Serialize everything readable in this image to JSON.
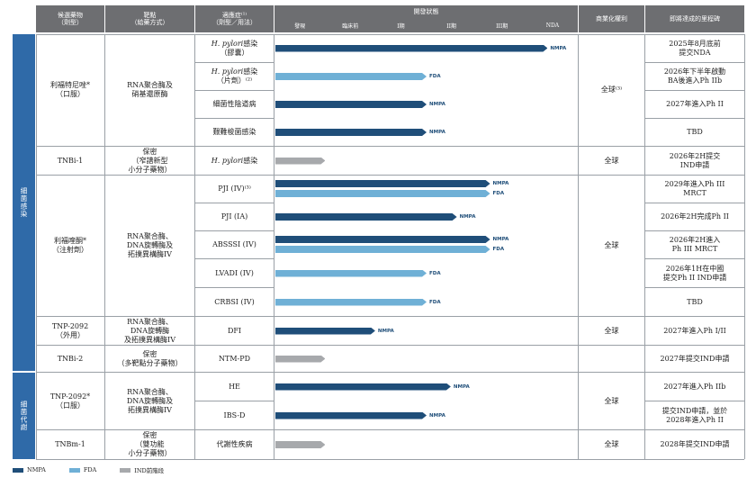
{
  "headers": {
    "candidate": "候選藥物\n（劑型）",
    "target": "靶點\n（給藥方式）",
    "indication": "適應症⁽¹⁾\n（劑型／用法）",
    "status": "開發狀態",
    "rights": "商業化權利",
    "milestone": "即將達成的里程碑",
    "phases": [
      "發現",
      "臨床前",
      "I期",
      "II期",
      "III期",
      "NDA"
    ]
  },
  "categories": {
    "infection": "細菌感染",
    "metabolic": "細菌代謝"
  },
  "candidates": [
    {
      "name": "利福特尼唑*\n（口服）",
      "target": "RNA聚合酶及\n硝基還原酶",
      "rights": "全球⁽³⁾"
    },
    {
      "name": "TNBi-1",
      "target": "保密\n（窄譜新型\n小分子藥物）",
      "rights": "全球"
    },
    {
      "name": "利福喹酮*\n（注射劑）",
      "target": "RNA聚合酶、\nDNA旋轉酶及\n拓撲異構酶IV",
      "rights": "全球"
    },
    {
      "name": "TNP-2092\n（外用）",
      "target": "RNA聚合酶、\nDNA旋轉酶\n及拓撲異構酶IV",
      "rights": "全球"
    },
    {
      "name": "TNBi-2",
      "target": "保密\n（多靶點分子藥物）",
      "rights": ""
    },
    {
      "name": "TNP-2092*\n（口服）",
      "target": "RNA聚合酶、\nDNA旋轉酶及\n拓撲異構酶IV",
      "rights": "全球"
    },
    {
      "name": "TNBm-1",
      "target": "保密\n（雙功能\n小分子藥物）",
      "rights": "全球"
    }
  ],
  "rows": [
    {
      "ind_a": "H. pylori",
      "ind_b": "感染\n（膠囊）",
      "bars": [
        {
          "type": "n",
          "end": 0.9,
          "label": "NMPA"
        }
      ],
      "milestone": "2025年8月底前\n提交NDA"
    },
    {
      "ind_a": "H. pylori",
      "ind_b": "感染\n（片劑）⁽²⁾",
      "bars": [
        {
          "type": "f",
          "end": 0.5,
          "label": "FDA"
        }
      ],
      "milestone": "2026年下半年啟動\nBA後進入Ph IIb"
    },
    {
      "ind_a": "",
      "ind_b": "細菌性陰道病",
      "bars": [
        {
          "type": "n",
          "end": 0.5,
          "label": "NMPA"
        }
      ],
      "milestone": "2027年進入Ph II"
    },
    {
      "ind_a": "",
      "ind_b": "艱難梭菌感染",
      "bars": [
        {
          "type": "n",
          "end": 0.5,
          "label": "NMPA"
        }
      ],
      "milestone": "TBD"
    },
    {
      "ind_a": "H. pylori",
      "ind_b": "感染",
      "bars": [
        {
          "type": "i",
          "end": 0.165
        }
      ],
      "milestone": "2026年2H提交\nIND申請"
    },
    {
      "ind_a": "",
      "ind_b": "PJI (IV)⁽³⁾",
      "bars": [
        {
          "type": "n",
          "end": 0.71,
          "label": "NMPA"
        },
        {
          "type": "f",
          "end": 0.71,
          "label": "FDA"
        }
      ],
      "milestone": "2029年進入Ph III\nMRCT"
    },
    {
      "ind_a": "",
      "ind_b": "PJI (IA)",
      "bars": [
        {
          "type": "n",
          "end": 0.6,
          "label": "NMPA"
        }
      ],
      "milestone": "2026年2H完成Ph II"
    },
    {
      "ind_a": "",
      "ind_b": "ABSSSI (IV)",
      "bars": [
        {
          "type": "n",
          "end": 0.71,
          "label": "NMPA"
        },
        {
          "type": "f",
          "end": 0.71,
          "label": "FDA"
        }
      ],
      "milestone": "2026年2H進入\nPh III MRCT"
    },
    {
      "ind_a": "",
      "ind_b": "LVADI (IV)",
      "bars": [
        {
          "type": "f",
          "end": 0.5,
          "label": "FDA"
        }
      ],
      "milestone": "2026年1H在中國\n提交Ph II IND申請"
    },
    {
      "ind_a": "",
      "ind_b": "CRBSI (IV)",
      "bars": [
        {
          "type": "f",
          "end": 0.5,
          "label": "FDA"
        }
      ],
      "milestone": "TBD"
    },
    {
      "ind_a": "",
      "ind_b": "DFI",
      "bars": [
        {
          "type": "n",
          "end": 0.33,
          "label": "NMPA"
        }
      ],
      "milestone": "2027年進入Ph I/II"
    },
    {
      "ind_a": "",
      "ind_b": "NTM-PD",
      "bars": [
        {
          "type": "i",
          "end": 0.165
        }
      ],
      "milestone": "2027年提交IND申請"
    },
    {
      "ind_a": "",
      "ind_b": "HE",
      "bars": [
        {
          "type": "n",
          "end": 0.58,
          "label": "NMPA"
        }
      ],
      "milestone": "2027年進入Ph IIb"
    },
    {
      "ind_a": "",
      "ind_b": "IBS-D",
      "bars": [
        {
          "type": "n",
          "end": 0.5,
          "label": "NMPA"
        }
      ],
      "milestone": "提交IND申請，並於\n2028年進入Ph II"
    },
    {
      "ind_a": "",
      "ind_b": "代謝性疾病",
      "bars": [
        {
          "type": "i",
          "end": 0.165
        }
      ],
      "milestone": "2028年提交IND申請"
    }
  ],
  "legend": [
    {
      "label": "NMPA",
      "color": "#1f4e79"
    },
    {
      "label": "FDA",
      "color": "#6fb0d6"
    },
    {
      "label": "IND前階段",
      "color": "#a7a9ac"
    }
  ]
}
